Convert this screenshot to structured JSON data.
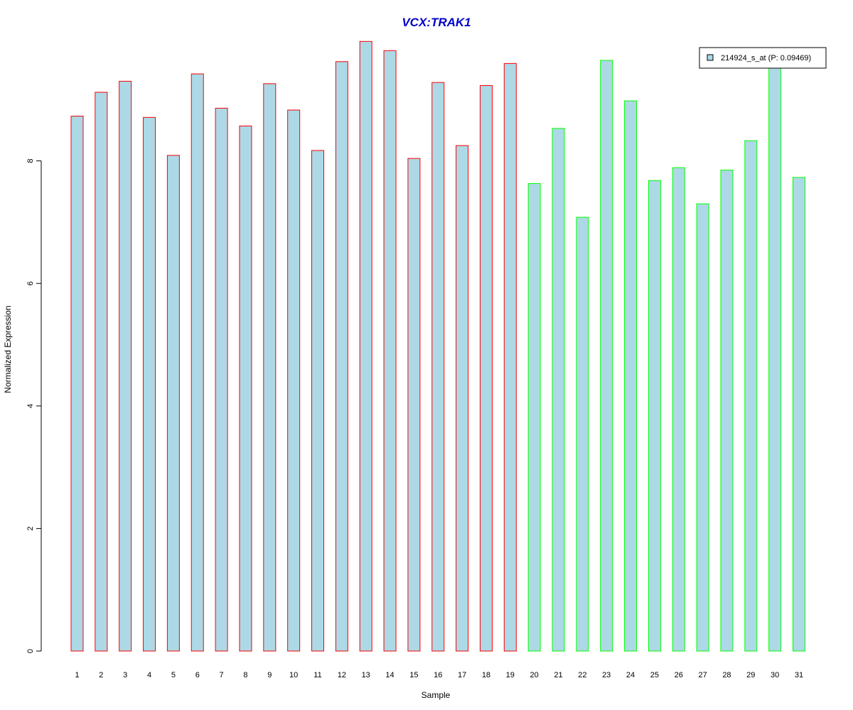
{
  "chart_data": {
    "type": "bar",
    "title": "VCX:TRAK1",
    "xlabel": "Sample",
    "ylabel": "Normalized Expression",
    "ylim": [
      0,
      10
    ],
    "yticks": [
      0,
      2,
      4,
      6,
      8
    ],
    "categories": [
      "1",
      "2",
      "3",
      "4",
      "5",
      "6",
      "7",
      "8",
      "9",
      "10",
      "11",
      "12",
      "13",
      "14",
      "15",
      "16",
      "17",
      "18",
      "19",
      "20",
      "21",
      "22",
      "23",
      "24",
      "25",
      "26",
      "27",
      "28",
      "29",
      "30",
      "31"
    ],
    "series": [
      {
        "name": "214924_s_at (P: 0.09469)",
        "values": [
          8.73,
          9.12,
          9.3,
          8.71,
          8.09,
          9.42,
          8.86,
          8.57,
          9.26,
          8.83,
          8.17,
          9.62,
          9.95,
          9.8,
          8.04,
          9.28,
          8.25,
          9.23,
          9.59,
          7.63,
          8.53,
          7.08,
          9.64,
          8.98,
          7.68,
          7.89,
          7.3,
          7.85,
          8.33,
          9.61,
          7.73
        ]
      }
    ],
    "bar_fill": "#add8e6",
    "group_border_colors": [
      "#ff0000",
      "#ff0000",
      "#ff0000",
      "#ff0000",
      "#ff0000",
      "#ff0000",
      "#ff0000",
      "#ff0000",
      "#ff0000",
      "#ff0000",
      "#ff0000",
      "#ff0000",
      "#ff0000",
      "#ff0000",
      "#ff0000",
      "#ff0000",
      "#ff0000",
      "#ff0000",
      "#ff0000",
      "#00ff00",
      "#00ff00",
      "#00ff00",
      "#00ff00",
      "#00ff00",
      "#00ff00",
      "#00ff00",
      "#00ff00",
      "#00ff00",
      "#00ff00",
      "#00ff00",
      "#00ff00"
    ],
    "title_color": "#0000cc",
    "legend": {
      "position": "top-right",
      "label": "214924_s_at (P: 0.09469)"
    },
    "grid": false
  }
}
